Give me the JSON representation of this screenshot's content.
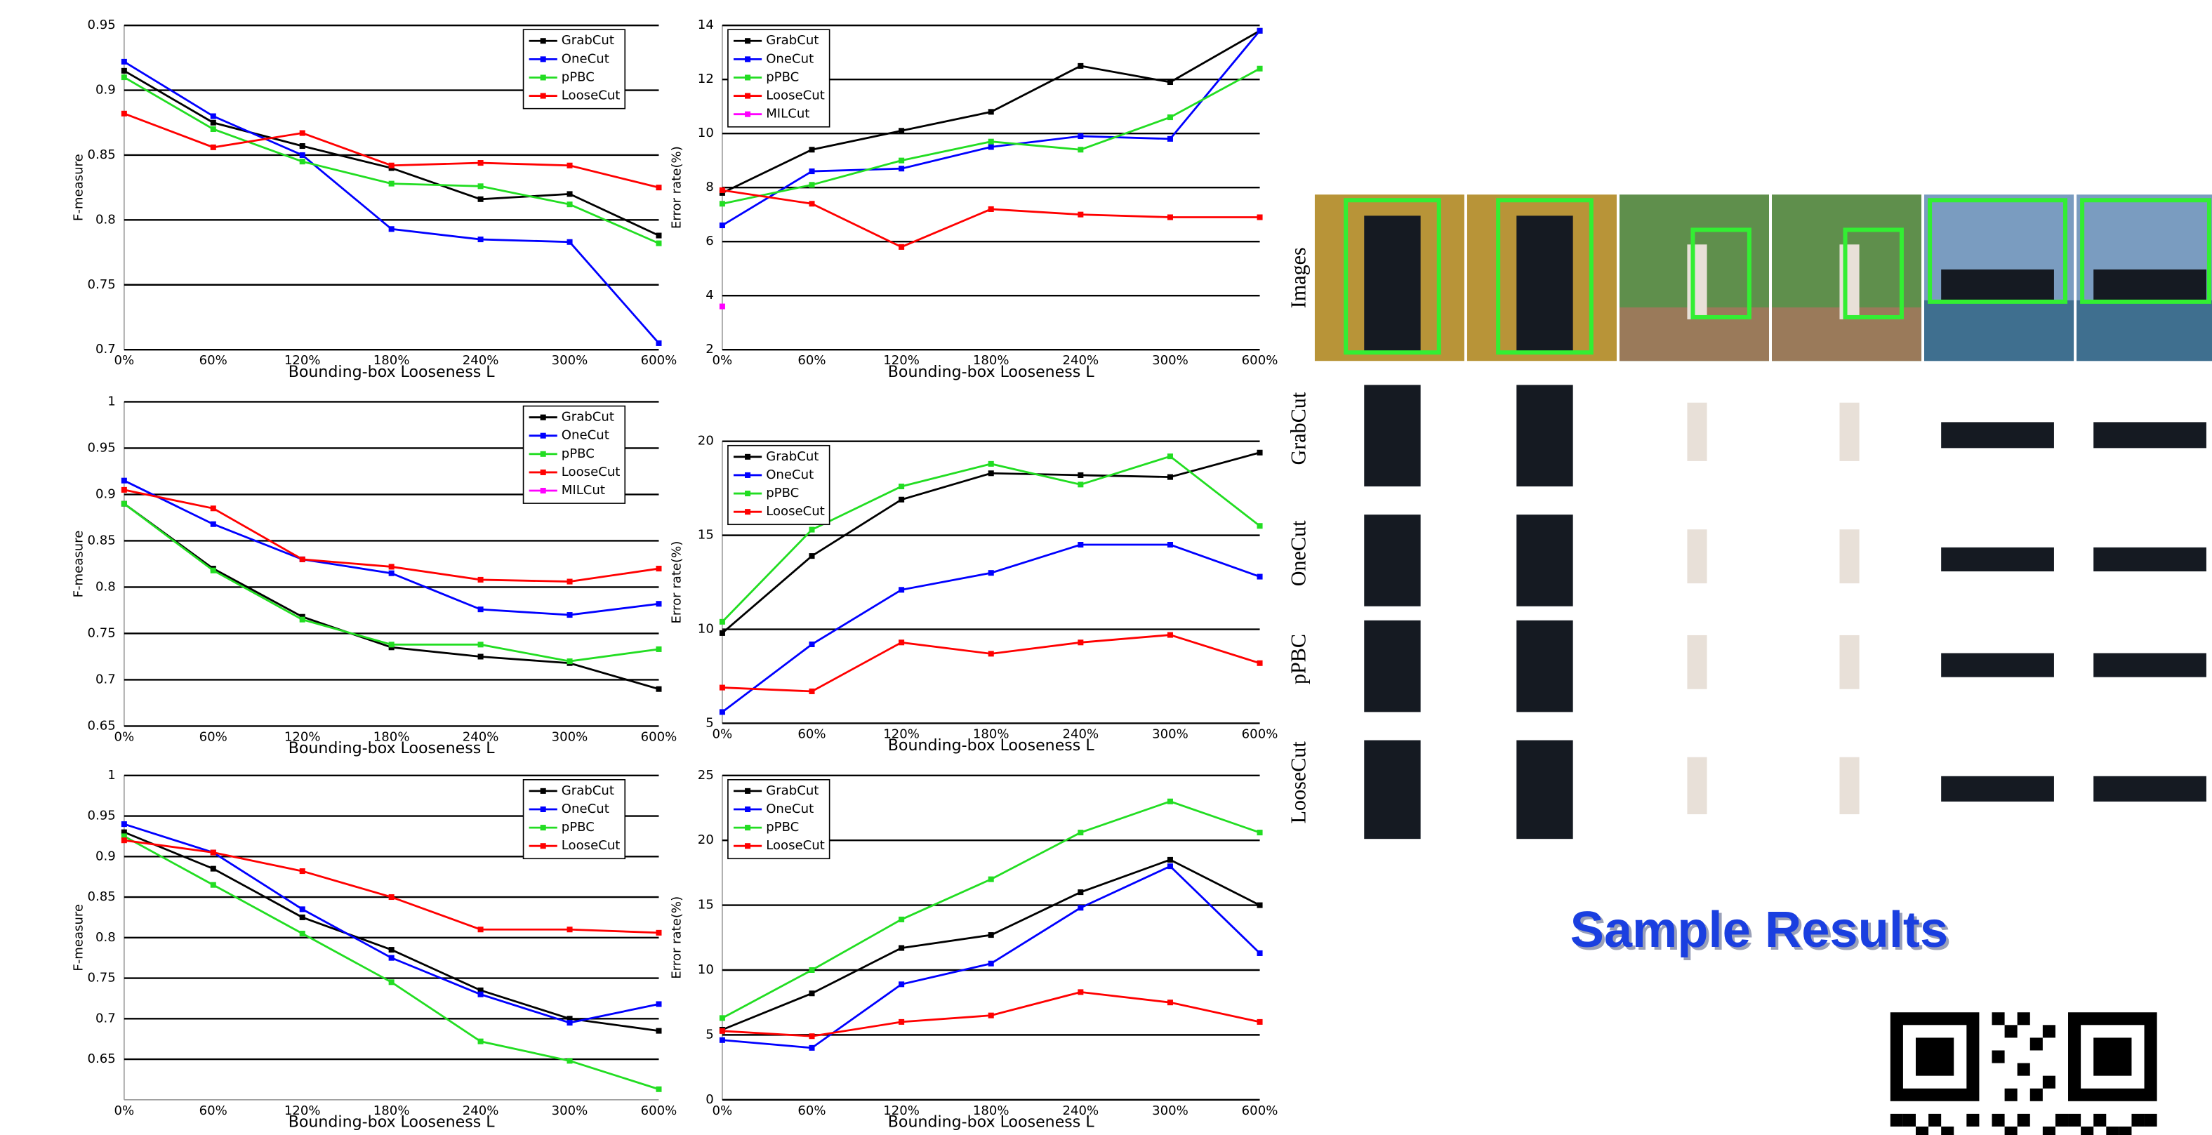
{
  "chart_data": [
    {
      "type": "line",
      "xlabel": "Bounding-box Looseness L",
      "ylabel": "F-measure",
      "categories": [
        "0%",
        "60%",
        "120%",
        "180%",
        "240%",
        "300%",
        "600%"
      ],
      "ylim": [
        0.7,
        0.95
      ],
      "yticks": [
        0.7,
        0.75,
        0.8,
        0.85,
        0.9,
        0.95
      ],
      "grid": true,
      "legend": "upper right",
      "series": [
        {
          "name": "GrabCut",
          "color": "#000000",
          "values": [
            0.915,
            0.875,
            0.857,
            0.84,
            0.816,
            0.82,
            0.788
          ]
        },
        {
          "name": "OneCut",
          "color": "#0000ff",
          "values": [
            0.922,
            0.88,
            0.85,
            0.793,
            0.785,
            0.783,
            0.705
          ]
        },
        {
          "name": "pPBC",
          "color": "#22dd22",
          "values": [
            0.91,
            0.87,
            0.845,
            0.828,
            0.826,
            0.812,
            0.782
          ]
        },
        {
          "name": "LooseCut",
          "color": "#ff0000",
          "values": [
            0.882,
            0.856,
            0.867,
            0.842,
            0.844,
            0.842,
            0.825
          ]
        }
      ]
    },
    {
      "type": "line",
      "xlabel": "Bounding-box Looseness L",
      "ylabel": "Error rate(%)",
      "categories": [
        "0%",
        "60%",
        "120%",
        "180%",
        "240%",
        "300%",
        "600%"
      ],
      "ylim": [
        2,
        14
      ],
      "yticks": [
        2,
        4,
        6,
        8,
        10,
        12,
        14
      ],
      "grid": true,
      "legend": "upper left",
      "series": [
        {
          "name": "GrabCut",
          "color": "#000000",
          "values": [
            7.8,
            9.4,
            10.1,
            10.8,
            12.5,
            11.9,
            13.8
          ]
        },
        {
          "name": "OneCut",
          "color": "#0000ff",
          "values": [
            6.6,
            8.6,
            8.7,
            9.5,
            9.9,
            9.8,
            13.8
          ]
        },
        {
          "name": "pPBC",
          "color": "#22dd22",
          "values": [
            7.4,
            8.1,
            9.0,
            9.7,
            9.4,
            10.6,
            12.4
          ]
        },
        {
          "name": "LooseCut",
          "color": "#ff0000",
          "values": [
            7.9,
            7.4,
            5.8,
            7.2,
            7.0,
            6.9,
            6.9
          ]
        },
        {
          "name": "MILCut",
          "color": "#ff00ff",
          "values": [
            3.6,
            null,
            null,
            null,
            null,
            null,
            null
          ]
        }
      ]
    },
    {
      "type": "line",
      "xlabel": "Bounding-box Looseness L",
      "ylabel": "F-measure",
      "categories": [
        "0%",
        "60%",
        "120%",
        "180%",
        "240%",
        "300%",
        "600%"
      ],
      "ylim": [
        0.65,
        1
      ],
      "yticks": [
        0.65,
        0.7,
        0.75,
        0.8,
        0.85,
        0.9,
        0.95,
        1
      ],
      "grid": true,
      "legend": "upper right",
      "series": [
        {
          "name": "GrabCut",
          "color": "#000000",
          "values": [
            0.89,
            0.82,
            0.768,
            0.735,
            0.725,
            0.718,
            0.69
          ]
        },
        {
          "name": "OneCut",
          "color": "#0000ff",
          "values": [
            0.915,
            0.868,
            0.83,
            0.815,
            0.776,
            0.77,
            0.782
          ]
        },
        {
          "name": "pPBC",
          "color": "#22dd22",
          "values": [
            0.89,
            0.818,
            0.765,
            0.738,
            0.738,
            0.72,
            0.733
          ]
        },
        {
          "name": "LooseCut",
          "color": "#ff0000",
          "values": [
            0.905,
            0.885,
            0.83,
            0.822,
            0.808,
            0.806,
            0.82
          ]
        },
        {
          "name": "MILCut",
          "color": "#ff00ff",
          "values": [
            null,
            null,
            null,
            null,
            null,
            null,
            null
          ]
        }
      ]
    },
    {
      "type": "line",
      "xlabel": "Bounding-box Looseness L",
      "ylabel": "Error rate(%)",
      "categories": [
        "0%",
        "60%",
        "120%",
        "180%",
        "240%",
        "300%",
        "600%"
      ],
      "ylim": [
        5,
        20
      ],
      "yticks": [
        5,
        10,
        15,
        20
      ],
      "grid": true,
      "legend": "upper left",
      "series": [
        {
          "name": "GrabCut",
          "color": "#000000",
          "values": [
            9.8,
            13.9,
            16.9,
            18.3,
            18.2,
            18.1,
            19.4
          ]
        },
        {
          "name": "OneCut",
          "color": "#0000ff",
          "values": [
            5.6,
            9.2,
            12.1,
            13.0,
            14.5,
            14.5,
            12.8
          ]
        },
        {
          "name": "pPBC",
          "color": "#22dd22",
          "values": [
            10.4,
            15.3,
            17.6,
            18.8,
            17.7,
            19.2,
            15.5
          ]
        },
        {
          "name": "LooseCut",
          "color": "#ff0000",
          "values": [
            6.9,
            6.7,
            9.3,
            8.7,
            9.3,
            9.7,
            8.2
          ]
        }
      ]
    },
    {
      "type": "line",
      "xlabel": "Bounding-box Looseness L",
      "ylabel": "F-measure",
      "categories": [
        "0%",
        "60%",
        "120%",
        "180%",
        "240%",
        "300%",
        "600%"
      ],
      "ylim": [
        0.6,
        1
      ],
      "yticks": [
        0.65,
        0.7,
        0.75,
        0.8,
        0.85,
        0.9,
        0.95,
        1
      ],
      "grid": true,
      "legend": "upper right",
      "series": [
        {
          "name": "GrabCut",
          "color": "#000000",
          "values": [
            0.93,
            0.885,
            0.825,
            0.785,
            0.735,
            0.7,
            0.685
          ]
        },
        {
          "name": "OneCut",
          "color": "#0000ff",
          "values": [
            0.94,
            0.905,
            0.835,
            0.775,
            0.73,
            0.695,
            0.718
          ]
        },
        {
          "name": "pPBC",
          "color": "#22dd22",
          "values": [
            0.925,
            0.865,
            0.805,
            0.745,
            0.672,
            0.648,
            0.613
          ]
        },
        {
          "name": "LooseCut",
          "color": "#ff0000",
          "values": [
            0.92,
            0.905,
            0.882,
            0.85,
            0.81,
            0.81,
            0.806
          ]
        }
      ]
    },
    {
      "type": "line",
      "xlabel": "Bounding-box Looseness L",
      "ylabel": "Error rate(%)",
      "categories": [
        "0%",
        "60%",
        "120%",
        "180%",
        "240%",
        "300%",
        "600%"
      ],
      "ylim": [
        0,
        25
      ],
      "yticks": [
        0,
        5,
        10,
        15,
        20,
        25
      ],
      "grid": true,
      "legend": "upper left",
      "series": [
        {
          "name": "GrabCut",
          "color": "#000000",
          "values": [
            5.4,
            8.2,
            11.7,
            12.7,
            16.0,
            18.5,
            15.0
          ]
        },
        {
          "name": "OneCut",
          "color": "#0000ff",
          "values": [
            4.6,
            4.0,
            8.9,
            10.5,
            14.8,
            18.0,
            11.3
          ]
        },
        {
          "name": "pPBC",
          "color": "#22dd22",
          "values": [
            6.3,
            10.0,
            13.9,
            17.0,
            20.6,
            23.0,
            20.6
          ]
        },
        {
          "name": "LooseCut",
          "color": "#ff0000",
          "values": [
            5.3,
            4.9,
            6.0,
            6.5,
            8.3,
            7.5,
            6.0
          ]
        }
      ]
    }
  ],
  "figure": {
    "title": "Sample Results",
    "row_labels": [
      "Images",
      "GrabCut",
      "OneCut",
      "pPBC",
      "LooseCut"
    ]
  }
}
